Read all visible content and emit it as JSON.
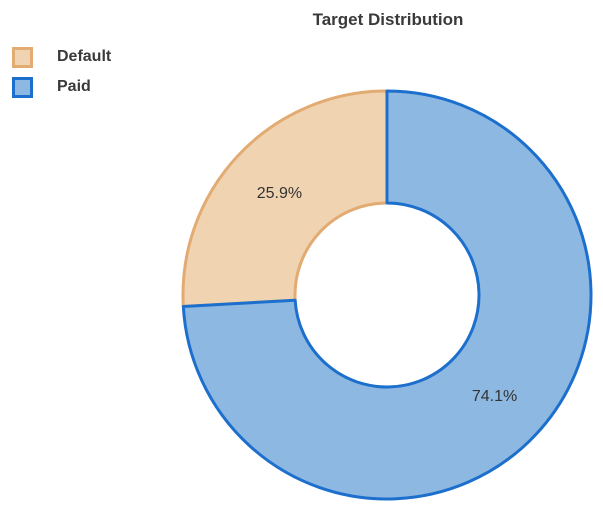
{
  "chart_data": {
    "type": "pie",
    "variant": "donut",
    "title": "Target Distribution",
    "categories": [
      "Default",
      "Paid"
    ],
    "values": [
      25.9,
      74.1
    ],
    "labels": [
      "25.9%",
      "74.1%"
    ],
    "colors": {
      "Default": {
        "fill": "#f0d3b1",
        "stroke": "#e2ab72"
      },
      "Paid": {
        "fill": "#8db8e2",
        "stroke": "#1c6fcc"
      }
    },
    "legend_position": "top-left"
  }
}
